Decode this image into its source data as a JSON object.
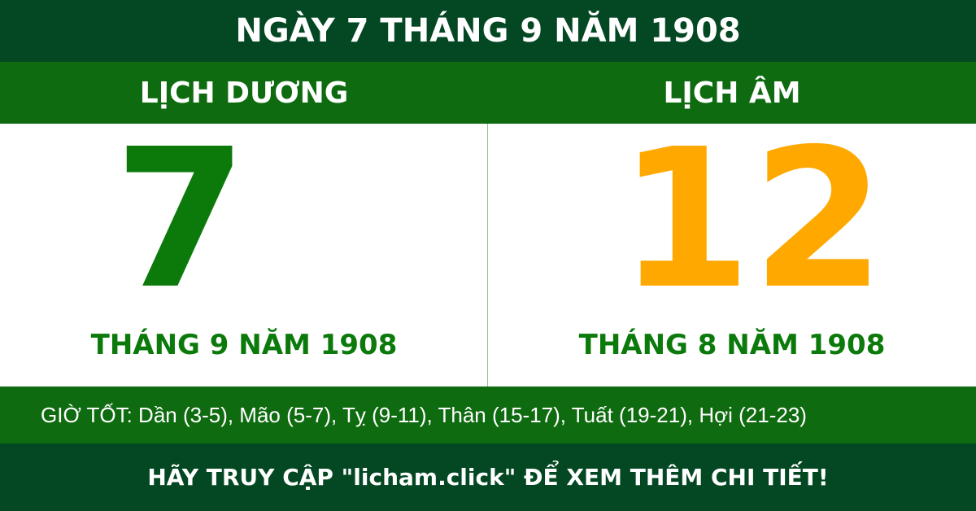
{
  "title": "NGÀY 7 THÁNG 9 NĂM 1908",
  "solar": {
    "heading": "LỊCH DƯƠNG",
    "day": "7",
    "month_year": "THÁNG 9 NĂM 1908"
  },
  "lunar": {
    "heading": "LỊCH ÂM",
    "day": "12",
    "month_year": "THÁNG 8 NĂM 1908"
  },
  "good_hours": "GIỜ TỐT: Dần (3-5), Mão (5-7), Tỵ (9-11), Thân (15-17), Tuất (19-21), Hợi (21-23)",
  "footer": "HÃY TRUY CẬP \"licham.click\" ĐỂ XEM THÊM CHI TIẾT!",
  "colors": {
    "dark_green": "#034822",
    "green": "#0f6b10",
    "solar_day": "#0b7a0b",
    "lunar_day": "#ffa800"
  }
}
